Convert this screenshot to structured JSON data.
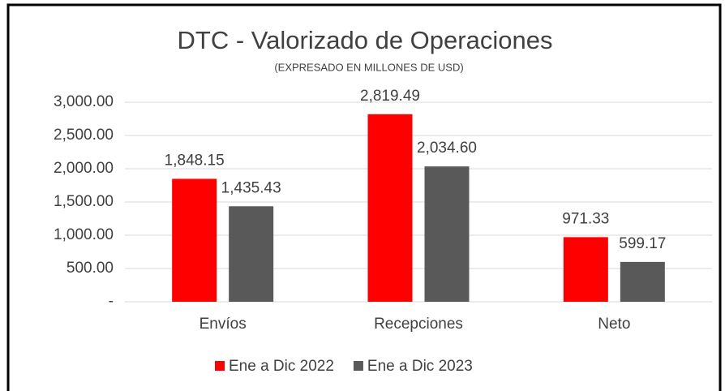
{
  "chart_data": {
    "type": "bar",
    "title": "DTC - Valorizado de Operaciones",
    "subtitle": "(EXPRESADO EN MILLONES DE USD)",
    "categories": [
      "Envíos",
      "Recepciones",
      "Neto"
    ],
    "series": [
      {
        "name": "Ene a Dic 2022",
        "color": "#ff0000",
        "values": [
          1848.15,
          2819.49,
          971.33
        ],
        "value_labels": [
          "1,848.15",
          "2,819.49",
          "971.33"
        ]
      },
      {
        "name": "Ene a Dic 2023",
        "color": "#595959",
        "values": [
          1435.43,
          2034.6,
          599.17
        ],
        "value_labels": [
          "1,435.43",
          "2,034.60",
          "599.17"
        ]
      }
    ],
    "ylim": [
      0,
      3000
    ],
    "yticks": [
      {
        "value": 0,
        "label": "-"
      },
      {
        "value": 500,
        "label": "500.00"
      },
      {
        "value": 1000,
        "label": "1,000.00"
      },
      {
        "value": 1500,
        "label": "1,500.00"
      },
      {
        "value": 2000,
        "label": "2,000.00"
      },
      {
        "value": 2500,
        "label": "2,500.00"
      },
      {
        "value": 3000,
        "label": "3,000.00"
      }
    ],
    "grid": true,
    "legend": "bottom"
  }
}
